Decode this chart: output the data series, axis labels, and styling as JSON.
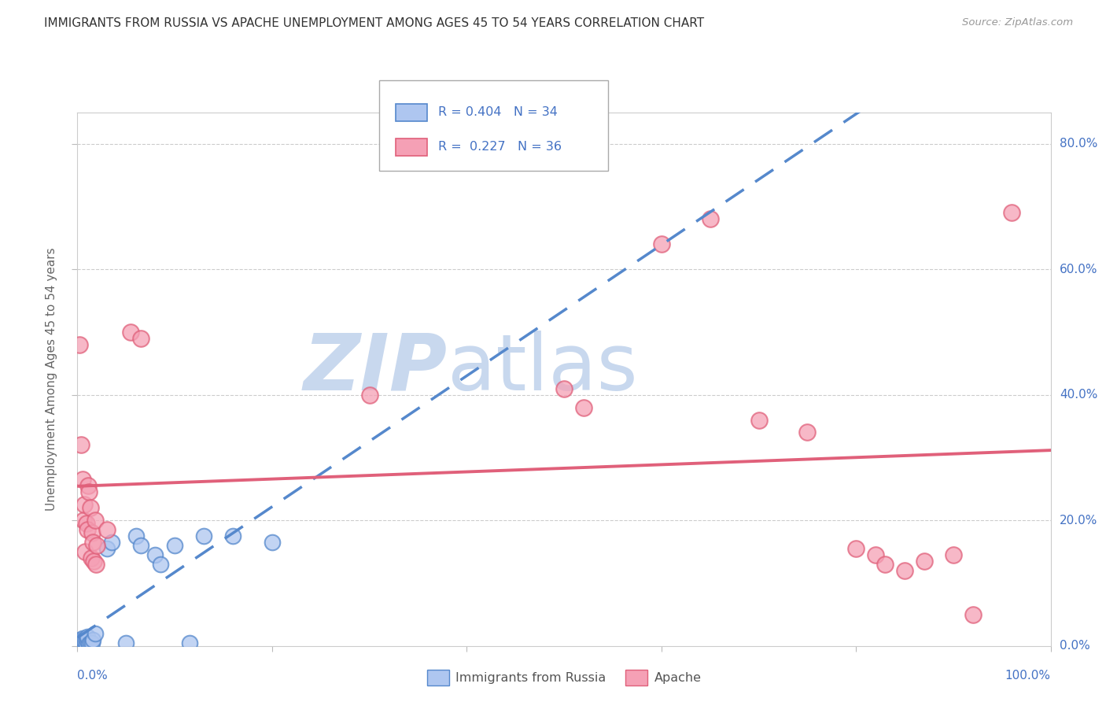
{
  "title": "IMMIGRANTS FROM RUSSIA VS APACHE UNEMPLOYMENT AMONG AGES 45 TO 54 YEARS CORRELATION CHART",
  "source": "Source: ZipAtlas.com",
  "ylabel": "Unemployment Among Ages 45 to 54 years",
  "legend_russia": "Immigrants from Russia",
  "legend_apache": "Apache",
  "r_russia": "0.404",
  "n_russia": "34",
  "r_apache": "0.227",
  "n_apache": "36",
  "russia_color": "#aec6f0",
  "apache_color": "#f5a0b5",
  "russia_line_color": "#5588cc",
  "apache_line_color": "#e0607a",
  "russia_scatter": [
    [
      0.001,
      0.005
    ],
    [
      0.002,
      0.005
    ],
    [
      0.002,
      0.008
    ],
    [
      0.003,
      0.003
    ],
    [
      0.003,
      0.01
    ],
    [
      0.004,
      0.005
    ],
    [
      0.004,
      0.008
    ],
    [
      0.005,
      0.003
    ],
    [
      0.005,
      0.012
    ],
    [
      0.006,
      0.005
    ],
    [
      0.006,
      0.01
    ],
    [
      0.007,
      0.003
    ],
    [
      0.007,
      0.008
    ],
    [
      0.008,
      0.005
    ],
    [
      0.009,
      0.003
    ],
    [
      0.01,
      0.008
    ],
    [
      0.01,
      0.015
    ],
    [
      0.012,
      0.003
    ],
    [
      0.013,
      0.005
    ],
    [
      0.015,
      0.005
    ],
    [
      0.016,
      0.01
    ],
    [
      0.018,
      0.02
    ],
    [
      0.03,
      0.155
    ],
    [
      0.035,
      0.165
    ],
    [
      0.05,
      0.005
    ],
    [
      0.06,
      0.175
    ],
    [
      0.065,
      0.16
    ],
    [
      0.08,
      0.145
    ],
    [
      0.085,
      0.13
    ],
    [
      0.1,
      0.16
    ],
    [
      0.115,
      0.005
    ],
    [
      0.13,
      0.175
    ],
    [
      0.16,
      0.175
    ],
    [
      0.2,
      0.165
    ]
  ],
  "apache_scatter": [
    [
      0.002,
      0.48
    ],
    [
      0.004,
      0.32
    ],
    [
      0.005,
      0.265
    ],
    [
      0.006,
      0.2
    ],
    [
      0.007,
      0.225
    ],
    [
      0.008,
      0.15
    ],
    [
      0.009,
      0.195
    ],
    [
      0.01,
      0.185
    ],
    [
      0.011,
      0.255
    ],
    [
      0.012,
      0.245
    ],
    [
      0.013,
      0.22
    ],
    [
      0.014,
      0.14
    ],
    [
      0.015,
      0.18
    ],
    [
      0.016,
      0.165
    ],
    [
      0.017,
      0.135
    ],
    [
      0.018,
      0.2
    ],
    [
      0.019,
      0.13
    ],
    [
      0.02,
      0.16
    ],
    [
      0.03,
      0.185
    ],
    [
      0.055,
      0.5
    ],
    [
      0.065,
      0.49
    ],
    [
      0.3,
      0.4
    ],
    [
      0.5,
      0.41
    ],
    [
      0.52,
      0.38
    ],
    [
      0.6,
      0.64
    ],
    [
      0.65,
      0.68
    ],
    [
      0.7,
      0.36
    ],
    [
      0.75,
      0.34
    ],
    [
      0.8,
      0.155
    ],
    [
      0.82,
      0.145
    ],
    [
      0.83,
      0.13
    ],
    [
      0.85,
      0.12
    ],
    [
      0.87,
      0.135
    ],
    [
      0.9,
      0.145
    ],
    [
      0.92,
      0.05
    ],
    [
      0.96,
      0.69
    ]
  ],
  "xlim": [
    0,
    1.0
  ],
  "ylim": [
    0,
    0.85
  ],
  "background_color": "#ffffff",
  "watermark_zip": "ZIP",
  "watermark_atlas": "atlas",
  "watermark_color_zip": "#c8d8ee",
  "watermark_color_atlas": "#c8d8ee"
}
